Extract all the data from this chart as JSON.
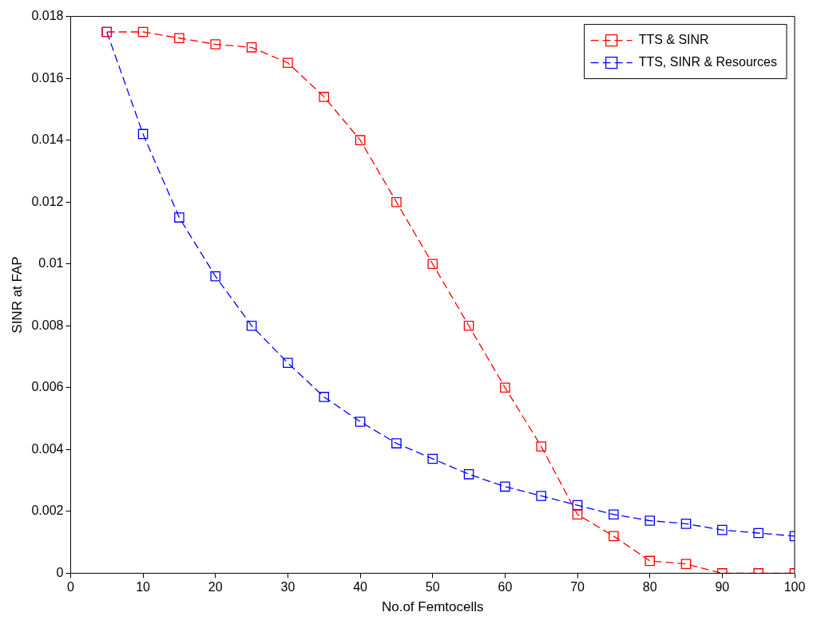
{
  "chart_data": {
    "type": "line",
    "xlabel": "No.of Femtocells",
    "ylabel": "SINR at FAP",
    "x": [
      5,
      10,
      15,
      20,
      25,
      30,
      35,
      40,
      45,
      50,
      55,
      60,
      65,
      70,
      75,
      80,
      85,
      90,
      95,
      100
    ],
    "series": [
      {
        "name": "TTS & SINR",
        "color": "#ff0000",
        "values": [
          0.0175,
          0.0175,
          0.0173,
          0.0171,
          0.017,
          0.0165,
          0.0154,
          0.014,
          0.012,
          0.01,
          0.008,
          0.006,
          0.0041,
          0.0019,
          0.0012,
          0.0004,
          0.0003,
          0.0,
          0.0,
          0.0
        ]
      },
      {
        "name": "TTS, SINR & Resources",
        "color": "#0000ff",
        "values": [
          0.0175,
          0.0142,
          0.0115,
          0.0096,
          0.008,
          0.0068,
          0.0057,
          0.0049,
          0.0042,
          0.0037,
          0.0032,
          0.0028,
          0.0025,
          0.0022,
          0.0019,
          0.0017,
          0.0016,
          0.0014,
          0.0013,
          0.0012
        ]
      }
    ],
    "xlim": [
      0,
      100
    ],
    "xticks": [
      0,
      10,
      20,
      30,
      40,
      50,
      60,
      70,
      80,
      90,
      100
    ],
    "ylim": [
      0,
      0.018
    ],
    "yticks": [
      0,
      0.002,
      0.004,
      0.006,
      0.008,
      0.01,
      0.012,
      0.014,
      0.016,
      0.018
    ],
    "grid": false,
    "legend": "top right",
    "marker": "square",
    "line_style": "dashed"
  }
}
